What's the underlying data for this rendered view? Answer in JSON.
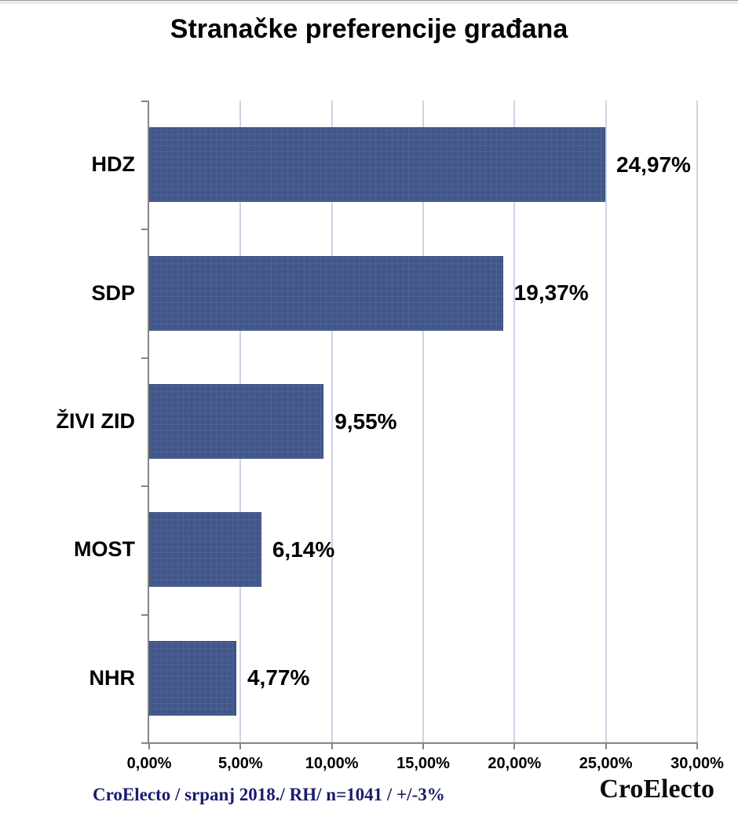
{
  "chart_data": {
    "type": "bar",
    "orientation": "horizontal",
    "title": "Stranačke preferencije građana",
    "categories": [
      "HDZ",
      "SDP",
      "ŽIVI ZID",
      "MOST",
      "NHR"
    ],
    "values": [
      24.97,
      19.37,
      9.55,
      6.14,
      4.77
    ],
    "value_labels": [
      "24,97%",
      "19,37%",
      "9,55%",
      "6,14%",
      "4,77%"
    ],
    "x_tick_values": [
      0,
      5,
      10,
      15,
      20,
      25,
      30
    ],
    "x_tick_labels": [
      "0,00%",
      "5,00%",
      "10,00%",
      "15,00%",
      "20,00%",
      "25,00%",
      "30,00%"
    ],
    "xlim": [
      0,
      30
    ],
    "grid": true,
    "legend": false,
    "bar_color": "#41568a",
    "gridline_color": "#c9d2e6",
    "axis_color": "#858585",
    "source_note": "CroElecto / srpanj 2018./ RH/ n=1041 / +/-3%",
    "brand": "CroElecto"
  }
}
